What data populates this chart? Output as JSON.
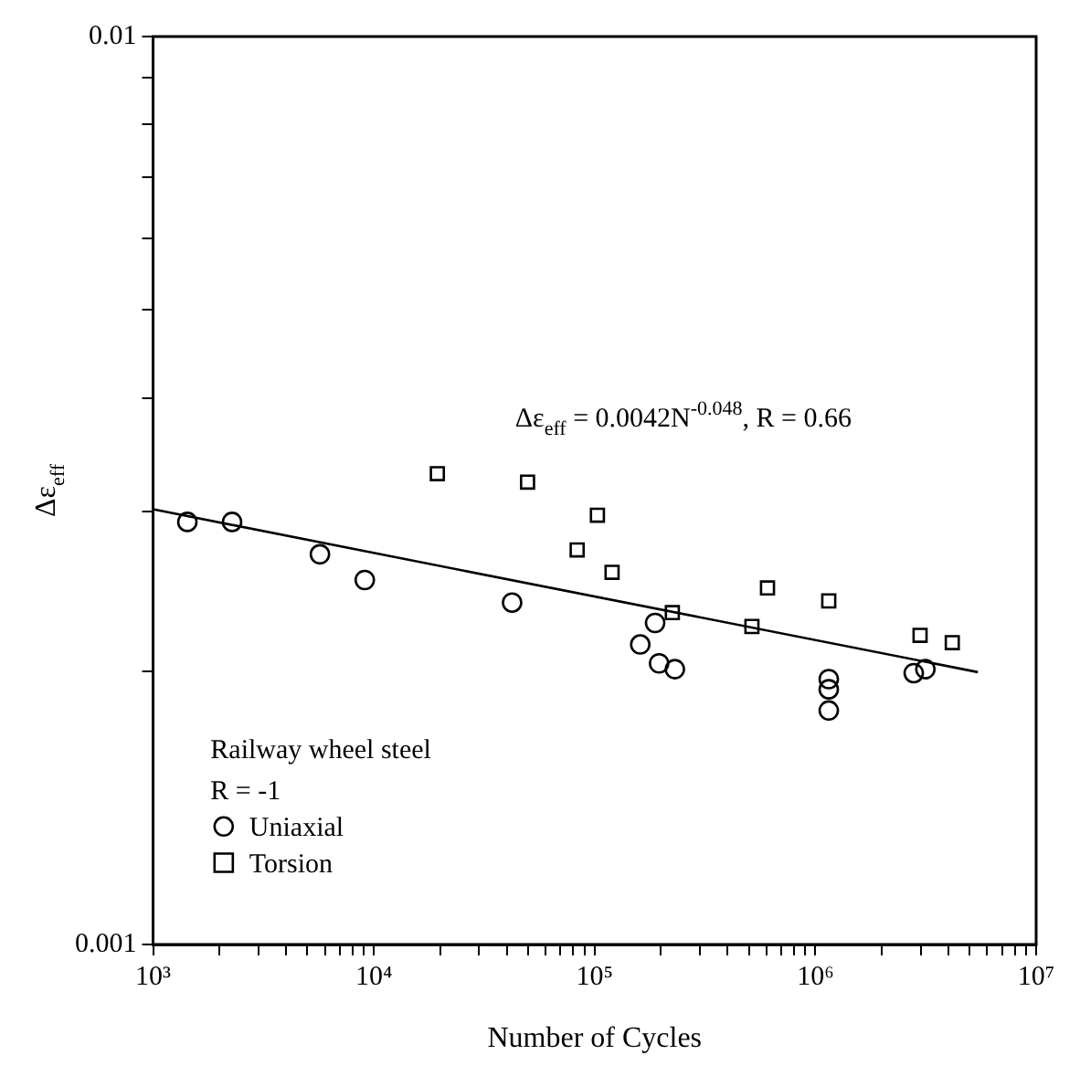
{
  "chart_data": {
    "type": "scatter",
    "xlabel": "Number of Cycles",
    "ylabel": "Δε$_{eff}$",
    "log": "xy",
    "grid": false,
    "legend": "bottom left",
    "marker": "circle",
    "xlim": [
      1000,
      10000000
    ],
    "ylim": [
      0.001,
      0.01
    ],
    "xticks": [
      {
        "value": 1000,
        "label": "10³"
      },
      {
        "value": 2000,
        "label": null
      },
      {
        "value": 3000,
        "label": null
      },
      {
        "value": 4000,
        "label": null
      },
      {
        "value": 5000,
        "label": null
      },
      {
        "value": 6000,
        "label": null
      },
      {
        "value": 7000,
        "label": null
      },
      {
        "value": 8000,
        "label": null
      },
      {
        "value": 9000,
        "label": null
      },
      {
        "value": 10000,
        "label": "10⁴"
      },
      {
        "value": 20000,
        "label": null
      },
      {
        "value": 30000,
        "label": null
      },
      {
        "value": 40000,
        "label": null
      },
      {
        "value": 50000,
        "label": null
      },
      {
        "value": 60000,
        "label": null
      },
      {
        "value": 70000,
        "label": null
      },
      {
        "value": 80000,
        "label": null
      },
      {
        "value": 90000,
        "label": null
      },
      {
        "value": 100000,
        "label": "10⁵"
      },
      {
        "value": 200000,
        "label": null
      },
      {
        "value": 300000,
        "label": null
      },
      {
        "value": 400000,
        "label": null
      },
      {
        "value": 500000,
        "label": null
      },
      {
        "value": 600000,
        "label": null
      },
      {
        "value": 700000,
        "label": null
      },
      {
        "value": 800000,
        "label": null
      },
      {
        "value": 900000,
        "label": null
      },
      {
        "value": 1000000,
        "label": "10⁶"
      },
      {
        "value": 2000000,
        "label": null
      },
      {
        "value": 3000000,
        "label": null
      },
      {
        "value": 4000000,
        "label": null
      },
      {
        "value": 5000000,
        "label": null
      },
      {
        "value": 6000000,
        "label": null
      },
      {
        "value": 7000000,
        "label": null
      },
      {
        "value": 8000000,
        "label": null
      },
      {
        "value": 9000000,
        "label": null
      },
      {
        "value": 10000000,
        "label": "10⁷"
      }
    ],
    "yticks": [
      0.001,
      {
        "value": 0.002,
        "label": null
      },
      {
        "value": 0.003,
        "label": null
      },
      {
        "value": 0.004,
        "label": null
      },
      {
        "value": 0.005,
        "label": null
      },
      {
        "value": 0.006,
        "label": null
      },
      {
        "value": 0.007,
        "label": null
      },
      {
        "value": 0.008,
        "label": null
      },
      {
        "value": 0.009,
        "label": null
      },
      0.01
    ],
    "series": [
      {
        "name": "Uniaxial",
        "color": "#000000",
        "x": [
          1430,
          2280,
          5700,
          9100,
          42300,
          188000,
          161000,
          196000,
          231000,
          1150000,
          1150000,
          1150000,
          2790000,
          3150000
        ],
        "values": [
          0.00292,
          0.00292,
          0.00269,
          0.00252,
          0.00238,
          0.00226,
          0.00214,
          0.00204,
          0.00201,
          0.00196,
          0.00191,
          0.00181,
          0.00199,
          0.00201
        ]
      },
      {
        "name": "Torsion",
        "type": "scatter",
        "marker": "square",
        "color": "#000000",
        "x": [
          19400,
          49700,
          103000,
          83400,
          120000,
          225000,
          516000,
          607000,
          1150000,
          2980000,
          4170000
        ],
        "values": [
          0.0033,
          0.00323,
          0.00297,
          0.00272,
          0.00257,
          0.00232,
          0.00224,
          0.00247,
          0.00239,
          0.00219,
          0.00215
        ]
      },
      {
        "type": "line",
        "marker": "none",
        "line_style": "solid",
        "color": "#000000",
        "x": [
          1000,
          5450000
        ],
        "values": [
          0.003015,
          0.001995
        ]
      }
    ],
    "annotations": [
      "Δε$_{eff}$ = 0.0042N$^{-0.048}$, R = 0.66",
      "Railway wheel steel",
      "R = -1"
    ]
  }
}
